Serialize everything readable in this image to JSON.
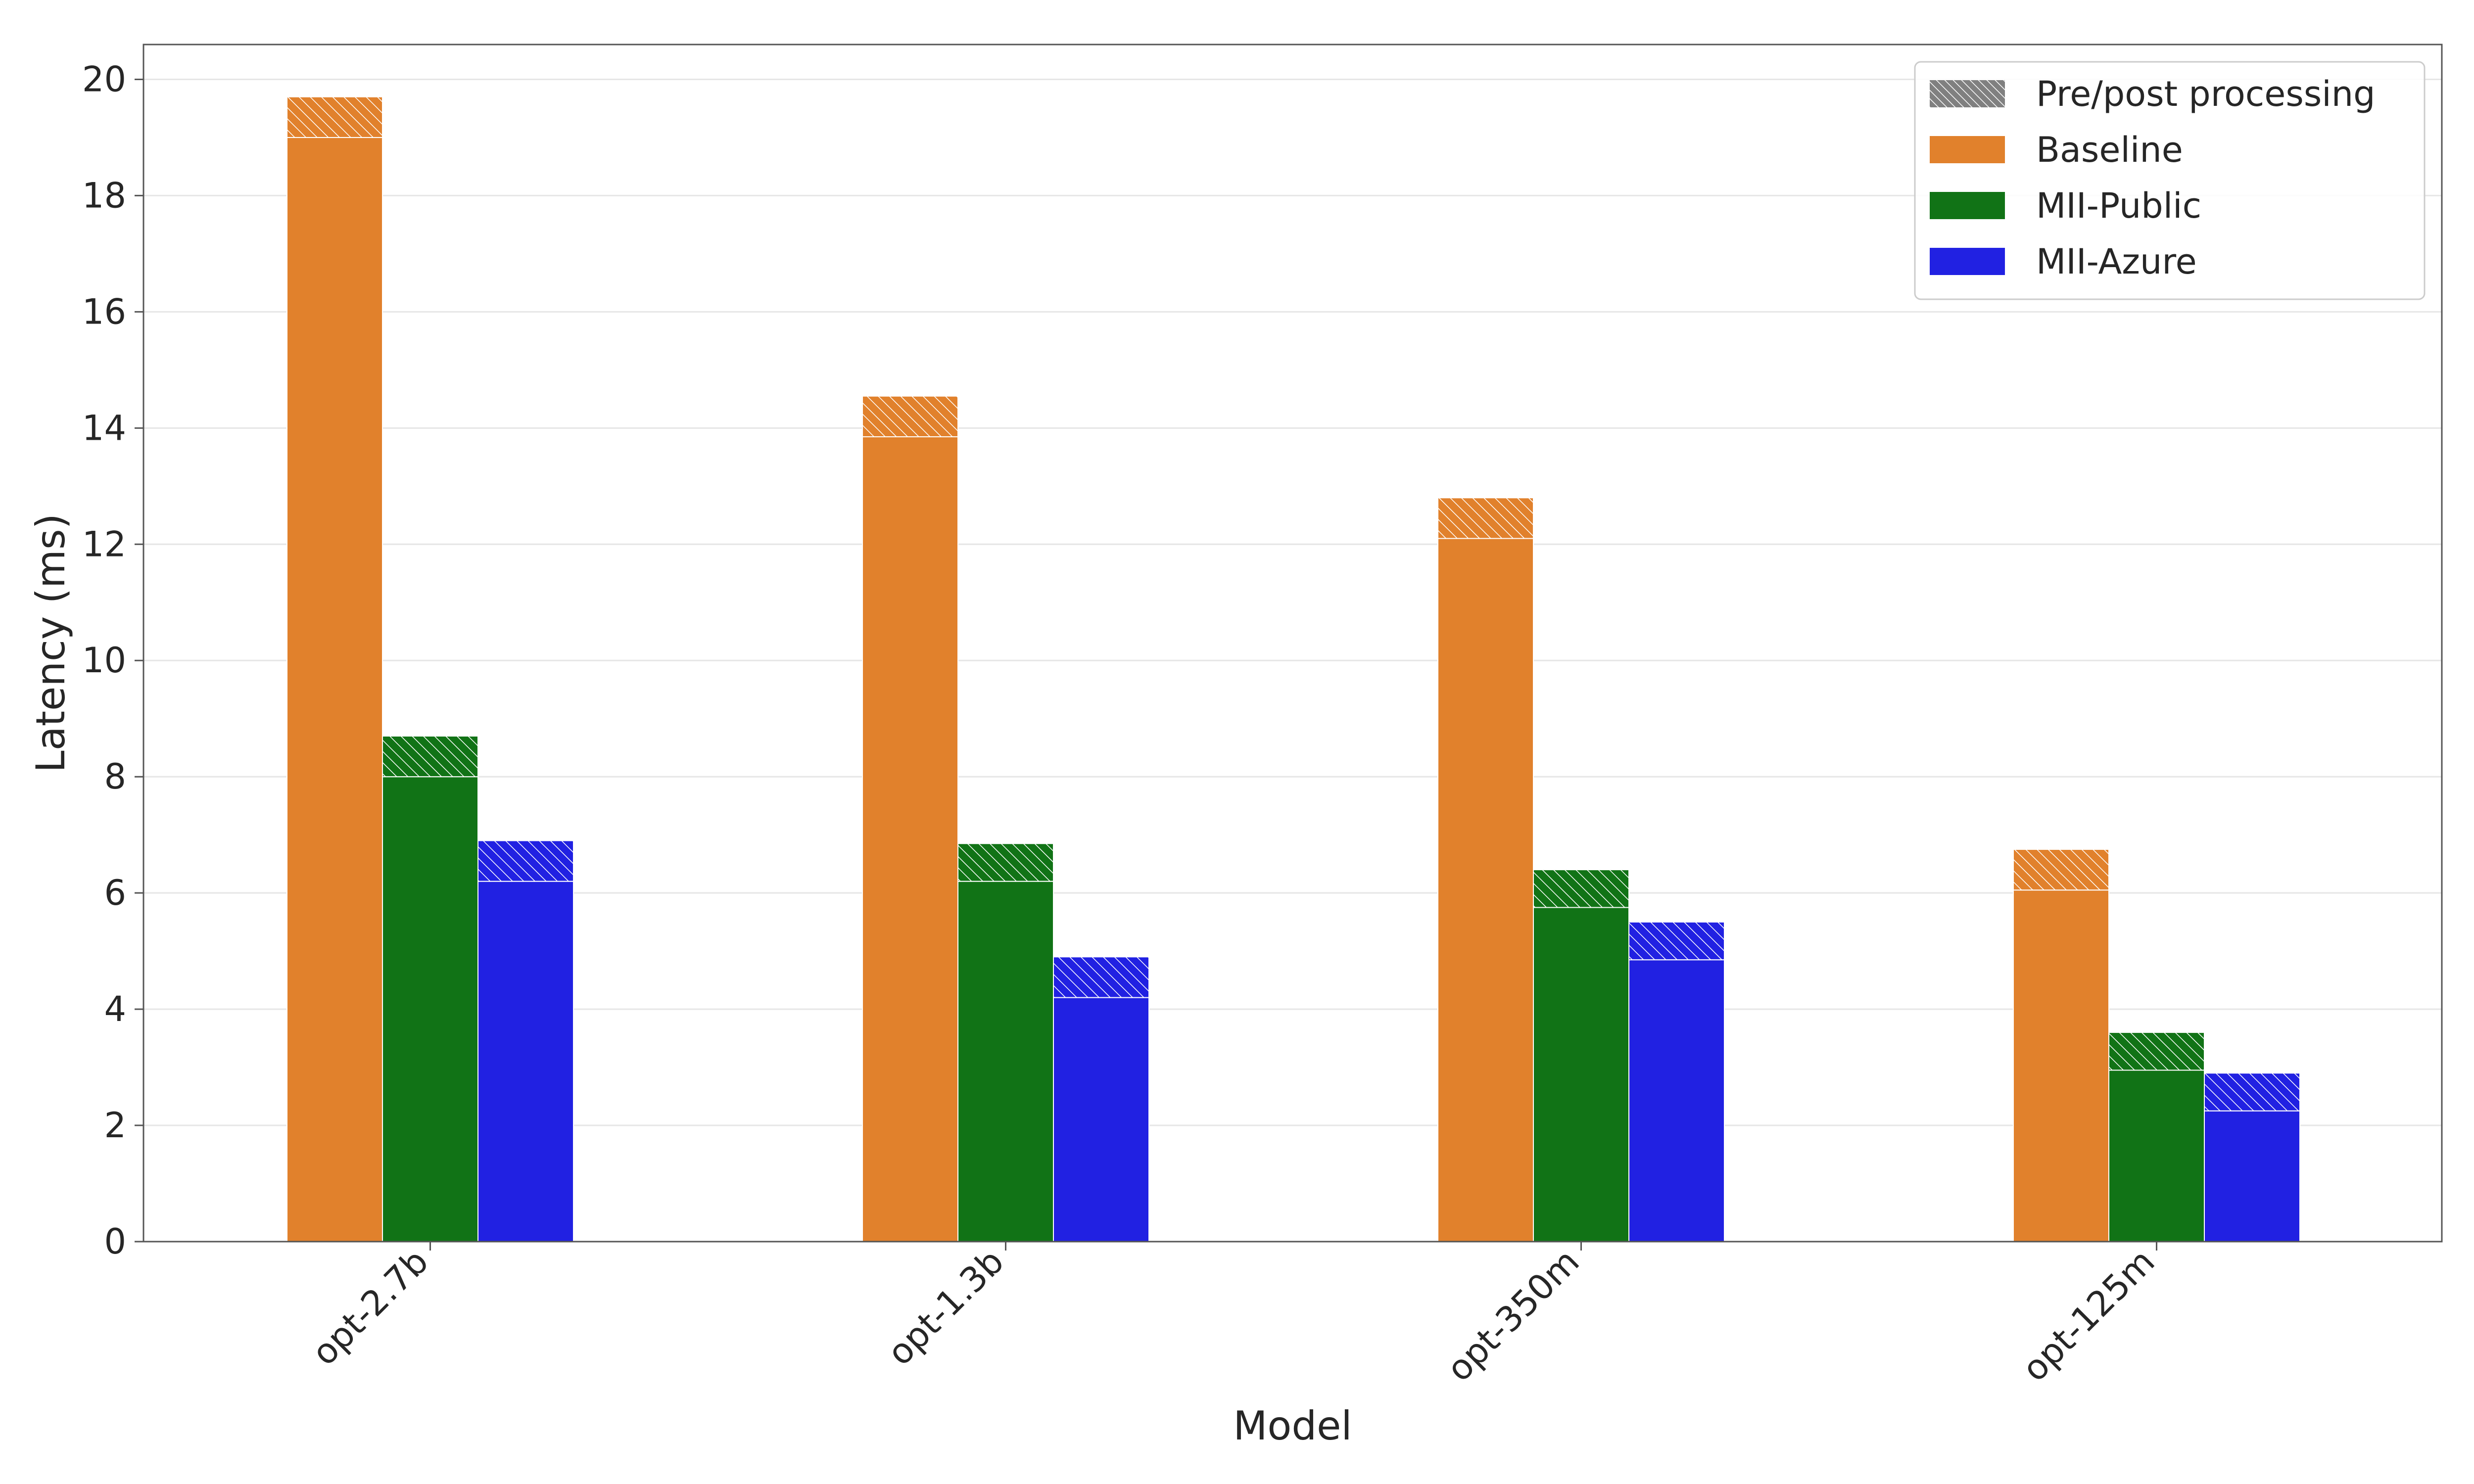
{
  "chart_data": {
    "type": "bar",
    "stacked_segments": true,
    "xlabel": "Model",
    "ylabel": "Latency (ms)",
    "categories": [
      "opt-2.7b",
      "opt-1.3b",
      "opt-350m",
      "opt-125m"
    ],
    "ylim": [
      0,
      20.6
    ],
    "yticks": [
      0,
      2,
      4,
      6,
      8,
      10,
      12,
      14,
      16,
      18,
      20
    ],
    "grid": true,
    "legend_position": "top-right",
    "series": [
      {
        "name": "Baseline",
        "color": "#e1812c",
        "base": [
          19.0,
          13.85,
          12.1,
          6.05
        ],
        "total": [
          19.7,
          14.55,
          12.8,
          6.75
        ]
      },
      {
        "name": "MII-Public",
        "color": "#117316",
        "base": [
          8.0,
          6.2,
          5.75,
          2.95
        ],
        "total": [
          8.7,
          6.85,
          6.4,
          3.6
        ]
      },
      {
        "name": "MII-Azure",
        "color": "#2121e2",
        "base": [
          6.2,
          4.2,
          4.85,
          2.25
        ],
        "total": [
          6.9,
          4.9,
          5.5,
          2.9
        ]
      }
    ],
    "legend": [
      {
        "label": "Pre/post processing",
        "color": "#808080",
        "hatched": true
      },
      {
        "label": "Baseline",
        "color": "#e1812c",
        "hatched": false
      },
      {
        "label": "MII-Public",
        "color": "#117316",
        "hatched": false
      },
      {
        "label": "MII-Azure",
        "color": "#2121e2",
        "hatched": false
      }
    ]
  }
}
